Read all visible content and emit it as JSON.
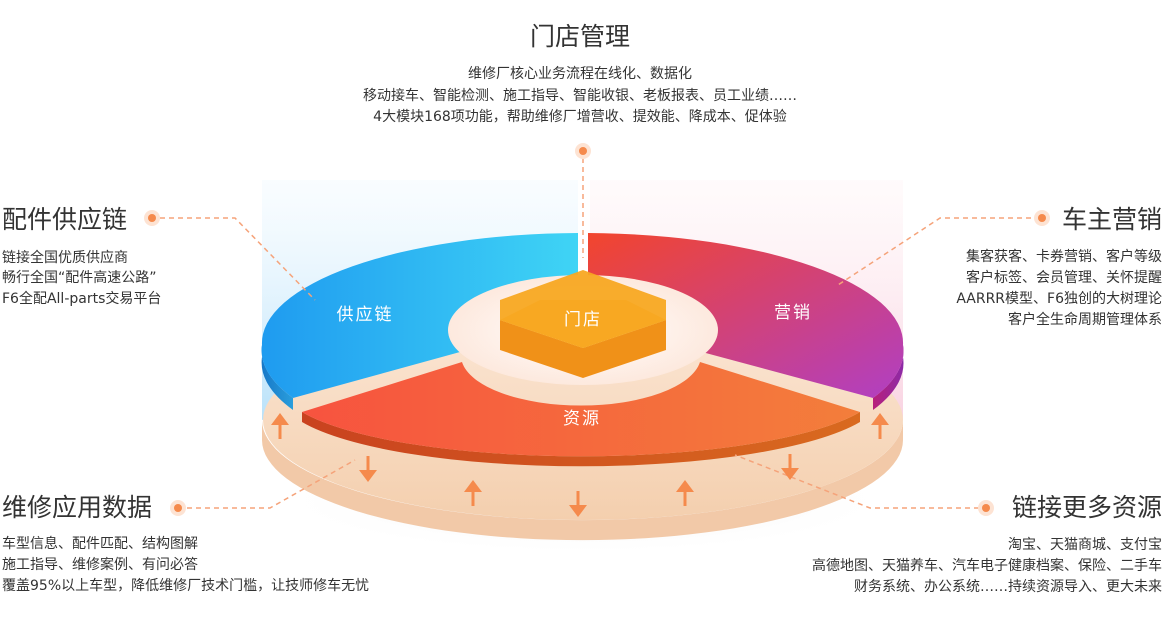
{
  "top": {
    "title": "门店管理",
    "lines": [
      "维修厂核心业务流程在线化、数据化",
      "移动接车、智能检测、施工指导、智能收银、老板报表、员工业绩……",
      "4大模块168项功能，帮助维修厂增营收、提效能、降成本、促体验"
    ]
  },
  "left_top": {
    "title": "配件供应链",
    "lines": [
      "链接全国优质供应商",
      "畅行全国“配件高速公路”",
      "F6全配All-parts交易平台"
    ]
  },
  "right_top": {
    "title": "车主营销",
    "lines": [
      "集客获客、卡券营销、客户等级",
      "客户标签、会员管理、关怀提醒",
      "AARRR模型、F6独创的大树理论",
      "客户全生命周期管理体系"
    ]
  },
  "left_bottom": {
    "title": "维修应用数据",
    "lines": [
      "车型信息、配件匹配、结构图解",
      "施工指导、维修案例、有问必答",
      "覆盖95%以上车型，降低维修厂技术门槛，让技师修车无忧"
    ]
  },
  "right_bottom": {
    "title": "链接更多资源",
    "lines": [
      "淘宝、天猫商城、支付宝",
      "高德地图、天猫养车、汽车电子健康档案、保险、二手车",
      "财务系统、办公系统……持续资源导入、更大未来"
    ]
  },
  "segments": {
    "supply": "供应链",
    "marketing": "营销",
    "resources": "资源",
    "store": "门店"
  },
  "colors": {
    "accent": "#f58a4c",
    "supply_from": "#25a2f0",
    "supply_to": "#3dd6f5",
    "marketing_from": "#f04a32",
    "marketing_to": "#c03fbf",
    "resources_from": "#f85a44",
    "resources_to": "#f47a3a",
    "store": "#f7a325",
    "base": "#f9dbc3"
  }
}
